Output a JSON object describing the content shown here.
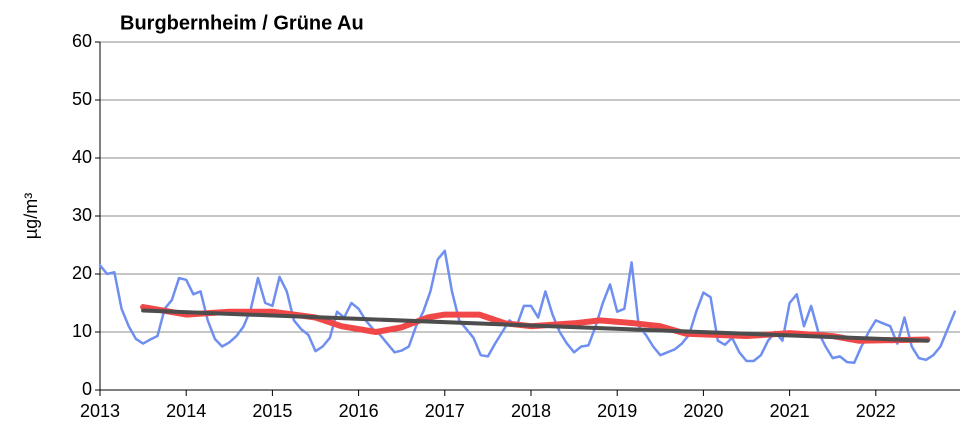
{
  "chart_data": {
    "type": "line",
    "title": "Burgbernheim / Grüne Au",
    "y_label": "µg/m³",
    "xlim": [
      2013,
      2023
    ],
    "xticks": [
      2013,
      2014,
      2015,
      2016,
      2017,
      2018,
      2019,
      2020,
      2021,
      2022
    ],
    "ylim": [
      0,
      60
    ],
    "yticks": [
      0,
      10,
      20,
      30,
      40,
      50,
      60
    ],
    "grid": true,
    "series": [
      {
        "color": "#6f8ff0",
        "x": [
          2013,
          2013.083,
          2013.167,
          2013.25,
          2013.333,
          2013.417,
          2013.5,
          2013.583,
          2013.667,
          2013.75,
          2013.833,
          2013.917,
          2014,
          2014.083,
          2014.167,
          2014.25,
          2014.333,
          2014.417,
          2014.5,
          2014.583,
          2014.667,
          2014.75,
          2014.833,
          2014.917,
          2015,
          2015.083,
          2015.167,
          2015.25,
          2015.333,
          2015.417,
          2015.5,
          2015.583,
          2015.667,
          2015.75,
          2015.833,
          2015.917,
          2016,
          2016.083,
          2016.167,
          2016.25,
          2016.333,
          2016.417,
          2016.5,
          2016.583,
          2016.667,
          2016.75,
          2016.833,
          2016.917,
          2017,
          2017.083,
          2017.167,
          2017.25,
          2017.333,
          2017.417,
          2017.5,
          2017.583,
          2017.667,
          2017.75,
          2017.833,
          2017.917,
          2018,
          2018.083,
          2018.167,
          2018.25,
          2018.333,
          2018.417,
          2018.5,
          2018.583,
          2018.667,
          2018.75,
          2018.833,
          2018.917,
          2019,
          2019.083,
          2019.167,
          2019.25,
          2019.333,
          2019.417,
          2019.5,
          2019.583,
          2019.667,
          2019.75,
          2019.833,
          2019.917,
          2020,
          2020.083,
          2020.167,
          2020.25,
          2020.333,
          2020.417,
          2020.5,
          2020.583,
          2020.667,
          2020.75,
          2020.833,
          2020.917,
          2021,
          2021.083,
          2021.167,
          2021.25,
          2021.333,
          2021.417,
          2021.5,
          2021.583,
          2021.667,
          2021.75,
          2021.833,
          2021.917,
          2022,
          2022.083,
          2022.167,
          2022.25,
          2022.333,
          2022.417,
          2022.5,
          2022.583,
          2022.667,
          2022.75,
          2022.833,
          2022.917
        ],
        "values": [
          21.5,
          20,
          20.3,
          14,
          11,
          8.8,
          8,
          8.7,
          9.3,
          14,
          15.5,
          19.3,
          19,
          16.5,
          17,
          12,
          8.8,
          7.5,
          8.2,
          9.3,
          11,
          14,
          19.3,
          15,
          14.5,
          19.5,
          17,
          12,
          10.5,
          9.5,
          6.7,
          7.5,
          9,
          13.5,
          12.5,
          15,
          14,
          12,
          10.5,
          9.5,
          8,
          6.5,
          6.8,
          7.5,
          11,
          13.5,
          17,
          22.5,
          24,
          17,
          12,
          10.5,
          9,
          6,
          5.8,
          8,
          10,
          12,
          11,
          14.5,
          14.5,
          12.5,
          17,
          13,
          10,
          8,
          6.5,
          7.5,
          7.7,
          11,
          15,
          18.2,
          13.5,
          14,
          22,
          11,
          9.5,
          7.5,
          6,
          6.5,
          7,
          8,
          9.5,
          13.5,
          16.8,
          16,
          8.5,
          7.8,
          9,
          6.5,
          5,
          5,
          6,
          8.5,
          10,
          8.5,
          15,
          16.5,
          11,
          14.5,
          10,
          7.5,
          5.5,
          5.8,
          4.8,
          4.7,
          7.5,
          10,
          12,
          11.5,
          11,
          8,
          12.5,
          7.5,
          5.5,
          5.2,
          6,
          7.5,
          10.5,
          13.5
        ]
      },
      {
        "color": "#f04848",
        "x": [
          2013.5,
          2014,
          2014.5,
          2015,
          2015.5,
          2015.8,
          2016.2,
          2016.5,
          2016.8,
          2017,
          2017.4,
          2017.7,
          2018,
          2018.5,
          2018.8,
          2019.2,
          2019.5,
          2019.8,
          2020.5,
          2021,
          2021.5,
          2021.8,
          2022.6
        ],
        "values": [
          14.3,
          13,
          13.5,
          13.5,
          12.5,
          11,
          10,
          10.8,
          12.5,
          13,
          13,
          11.5,
          11,
          11.5,
          12,
          11.5,
          11,
          9.7,
          9.3,
          9.8,
          9.3,
          8.5,
          8.7
        ]
      },
      {
        "color": "#4d4d4d",
        "x": [
          2013.5,
          2022.6
        ],
        "values": [
          13.7,
          8.5
        ]
      }
    ]
  }
}
